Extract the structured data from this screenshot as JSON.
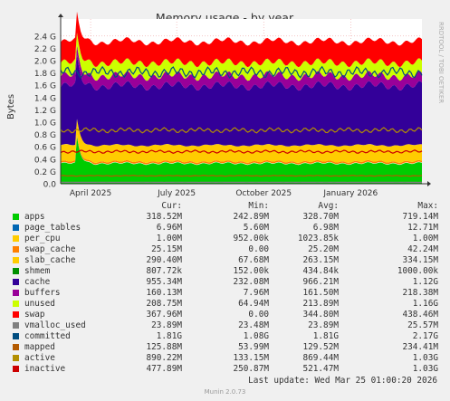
{
  "chart_data": {
    "type": "area",
    "title": "Memory usage - by year",
    "ylabel": "Bytes",
    "side_label": "RRDTOOL / TOBI OETIKER",
    "ylim": [
      0,
      2500000000.0
    ],
    "y_ticks": [
      {
        "value": 0,
        "label": "0.0"
      },
      {
        "value": 200000000.0,
        "label": "0.2 G"
      },
      {
        "value": 400000000.0,
        "label": "0.4 G"
      },
      {
        "value": 600000000.0,
        "label": "0.6 G"
      },
      {
        "value": 800000000.0,
        "label": "0.8 G"
      },
      {
        "value": 1000000000.0,
        "label": "1.0 G"
      },
      {
        "value": 1200000000.0,
        "label": "1.2 G"
      },
      {
        "value": 1400000000.0,
        "label": "1.4 G"
      },
      {
        "value": 1600000000.0,
        "label": "1.6 G"
      },
      {
        "value": 1800000000.0,
        "label": "1.8 G"
      },
      {
        "value": 2000000000.0,
        "label": "2.0 G"
      },
      {
        "value": 2200000000.0,
        "label": "2.2 G"
      },
      {
        "value": 2400000000.0,
        "label": "2.4 G"
      }
    ],
    "x_ticks": [
      {
        "value": "2025-04-01",
        "label": "April 2025"
      },
      {
        "value": "2025-07-01",
        "label": "July 2025"
      },
      {
        "value": "2025-10-01",
        "label": "October 2025"
      },
      {
        "value": "2026-01-01",
        "label": "January 2026"
      }
    ],
    "x_range": [
      "2025-03-08",
      "2026-03-25"
    ],
    "columns": [
      "Cur:",
      "Min:",
      "Avg:",
      "Max:"
    ],
    "series": [
      {
        "name": "apps",
        "color": "#00cc00",
        "cur": "318.52M",
        "min": "242.89M",
        "avg": "328.70M",
        "max": "719.14M",
        "value": 329000000.0,
        "kind": "area"
      },
      {
        "name": "page_tables",
        "color": "#0066b3",
        "cur": "6.96M",
        "min": "5.60M",
        "avg": "6.98M",
        "max": "12.71M",
        "value": 6980000.0,
        "kind": "area"
      },
      {
        "name": "per_cpu",
        "color": "#ffcc00",
        "cur": "1.00M",
        "min": "952.00k",
        "avg": "1023.85k",
        "max": "1.00M",
        "value": 1020000.0,
        "kind": "area"
      },
      {
        "name": "swap_cache",
        "color": "#ff8000",
        "cur": "25.15M",
        "min": "0.00",
        "avg": "25.20M",
        "max": "42.24M",
        "value": 25200000.0,
        "kind": "area"
      },
      {
        "name": "slab_cache",
        "color": "#ffcc00",
        "cur": "290.40M",
        "min": "67.68M",
        "avg": "263.15M",
        "max": "334.15M",
        "value": 263000000.0,
        "kind": "area"
      },
      {
        "name": "shmem",
        "color": "#008f00",
        "cur": "807.72k",
        "min": "152.00k",
        "avg": "434.84k",
        "max": "1000.00k",
        "value": 430000.0,
        "kind": "area"
      },
      {
        "name": "cache",
        "color": "#330099",
        "cur": "955.34M",
        "min": "232.08M",
        "avg": "966.21M",
        "max": "1.12G",
        "value": 966000000.0,
        "kind": "area"
      },
      {
        "name": "buffers",
        "color": "#990099",
        "cur": "160.13M",
        "min": "7.96M",
        "avg": "161.50M",
        "max": "218.38M",
        "value": 162000000.0,
        "kind": "area"
      },
      {
        "name": "unused",
        "color": "#ccff00",
        "cur": "208.75M",
        "min": "64.94M",
        "avg": "213.89M",
        "max": "1.16G",
        "value": 214000000.0,
        "kind": "area"
      },
      {
        "name": "swap",
        "color": "#ff0000",
        "cur": "367.96M",
        "min": "0.00",
        "avg": "344.80M",
        "max": "438.46M",
        "value": 345000000.0,
        "kind": "area"
      },
      {
        "name": "vmalloc_used",
        "color": "#808080",
        "cur": "23.89M",
        "min": "23.48M",
        "avg": "23.89M",
        "max": "25.57M",
        "value": 23900000.0,
        "kind": "line"
      },
      {
        "name": "committed",
        "color": "#004d80",
        "cur": "1.81G",
        "min": "1.08G",
        "avg": "1.81G",
        "max": "2.17G",
        "value": 1810000000.0,
        "kind": "line"
      },
      {
        "name": "mapped",
        "color": "#b35a00",
        "cur": "125.88M",
        "min": "53.99M",
        "avg": "129.52M",
        "max": "234.41M",
        "value": 130000000.0,
        "kind": "line"
      },
      {
        "name": "active",
        "color": "#b38f00",
        "cur": "890.22M",
        "min": "133.15M",
        "avg": "869.44M",
        "max": "1.03G",
        "value": 869000000.0,
        "kind": "line"
      },
      {
        "name": "inactive",
        "color": "#cc0000",
        "cur": "477.89M",
        "min": "250.87M",
        "avg": "521.47M",
        "max": "1.03G",
        "value": 521000000.0,
        "kind": "line"
      }
    ]
  },
  "footer": {
    "last_update": "Last update: Wed Mar 25 01:00:20 2026",
    "version": "Munin 2.0.73"
  }
}
